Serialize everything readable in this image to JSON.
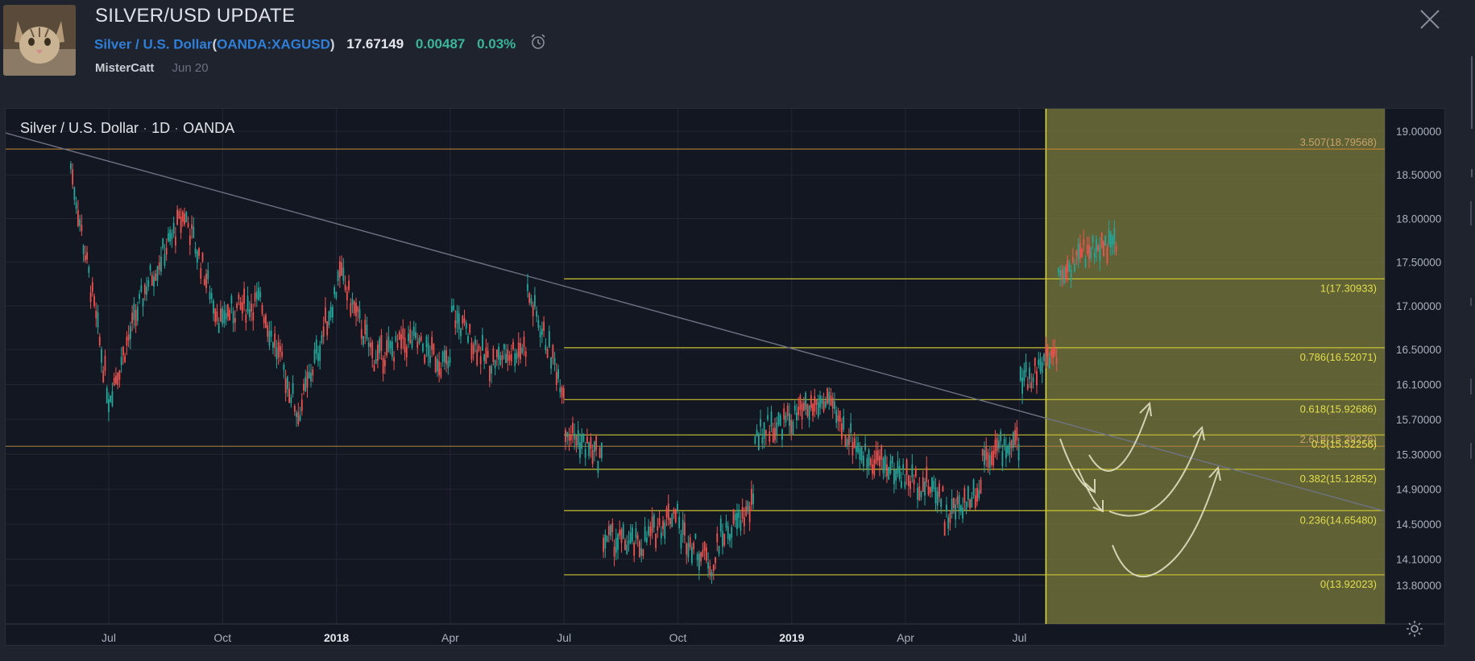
{
  "header": {
    "title": "SILVER/USD UPDATE",
    "symbol_name": "Silver / U.S. Dollar",
    "open_paren": "(",
    "ticker": "OANDA:XAGUSD",
    "close_paren": ")",
    "price": "17.67149",
    "change": "0.00487",
    "change_pct": "0.03%",
    "author": "MisterCatt",
    "date": "Jun 20"
  },
  "icons": {
    "alarm": "alarm-clock-icon",
    "close": "close-icon",
    "settings": "gear-icon",
    "avatar": "cat-avatar"
  },
  "colors": {
    "background": "#1f232e",
    "chart_background": "#131722",
    "up_candle": "#26a69a",
    "down_candle": "#ef5350",
    "fib_lines": "#c8c232",
    "projection_zone": "#7e7f3f",
    "trendline": "#6e7282",
    "accent_blue": "#2f7fd8",
    "accent_green": "#3bb59a"
  },
  "chart": {
    "legend_symbol": "Silver / U.S. Dollar",
    "legend_sep": "·",
    "legend_interval": "1D",
    "legend_exchange": "OANDA"
  },
  "chart_data": {
    "type": "candlestick",
    "interval": "1D",
    "price_axis": [
      "19.00000",
      "18.50000",
      "18.00000",
      "17.50000",
      "17.00000",
      "16.50000",
      "16.10000",
      "15.70000",
      "15.30000",
      "14.90000",
      "14.50000",
      "14.10000",
      "13.80000"
    ],
    "time_axis": [
      "Jul",
      "Oct",
      "2018",
      "Apr",
      "Jul",
      "Oct",
      "2019",
      "Apr",
      "Jul"
    ],
    "fib_levels": [
      {
        "label": "1(17.30933)",
        "value": 17.30933
      },
      {
        "label": "0.786(16.52071)",
        "value": 16.52071
      },
      {
        "label": "0.618(15.92686)",
        "value": 15.92686
      },
      {
        "label": "0.5(15.52256)",
        "value": 15.52256
      },
      {
        "label": "0.382(15.12852)",
        "value": 15.12852
      },
      {
        "label": "0.236(14.65480)",
        "value": 14.6548
      },
      {
        "label": "0(13.92023)",
        "value": 13.92023
      }
    ],
    "extension_levels": [
      {
        "label": "3.507(18.79568)",
        "value": 18.79568
      },
      {
        "label": "2.618(15.39276)",
        "value": 15.39276
      }
    ],
    "anchors": [
      [
        "Jun 2017",
        18.6
      ],
      [
        "Jul 2017",
        15.95
      ],
      [
        "Aug 2017",
        17.25
      ],
      [
        "Sep 2017",
        18.05
      ],
      [
        "Oct 2017",
        16.75
      ],
      [
        "Oct 2017",
        16.9
      ],
      [
        "Nov 2017",
        17.05
      ],
      [
        "Dec 2017",
        15.75
      ],
      [
        "Jan 2018",
        17.2
      ],
      [
        "Jan 2018",
        17.45
      ],
      [
        "Feb 2018",
        16.4
      ],
      [
        "Mar 2018",
        16.6
      ],
      [
        "Apr 2018",
        16.3
      ],
      [
        "Apr 2018",
        16.95
      ],
      [
        "May 2018",
        16.35
      ],
      [
        "Jun 2018",
        16.55
      ],
      [
        "Jun 2018",
        17.2
      ],
      [
        "Jul 2018",
        16.05
      ],
      [
        "Jul 2018",
        15.6
      ],
      [
        "Aug 2018",
        15.25
      ],
      [
        "Aug 2018",
        14.35
      ],
      [
        "Sep 2018",
        14.25
      ],
      [
        "Oct 2018",
        14.7
      ],
      [
        "Oct 2018",
        14.45
      ],
      [
        "Nov 2018",
        14.0
      ],
      [
        "Nov 2018",
        14.3
      ],
      [
        "Dec 2018",
        14.7
      ],
      [
        "Dec 2018",
        15.55
      ],
      [
        "Jan 2019",
        15.7
      ],
      [
        "Feb 2019",
        15.95
      ],
      [
        "Feb 2019",
        15.8
      ],
      [
        "Mar 2019",
        15.25
      ],
      [
        "Mar 2019",
        15.3
      ],
      [
        "Apr 2019",
        15.05
      ],
      [
        "May 2019",
        14.85
      ],
      [
        "May 2019",
        14.55
      ],
      [
        "Jun 2019",
        14.95
      ],
      [
        "Jun 2019",
        15.3
      ],
      [
        "Jul 2019",
        15.45
      ],
      [
        "Jul 2019",
        15.3
      ],
      [
        "Jul 2019",
        16.1
      ],
      [
        "Aug 2019",
        16.5
      ],
      [
        "Aug 2019",
        17.1
      ],
      [
        "Aug 2019",
        17.35
      ],
      [
        "Sep 2019",
        17.7
      ]
    ]
  }
}
